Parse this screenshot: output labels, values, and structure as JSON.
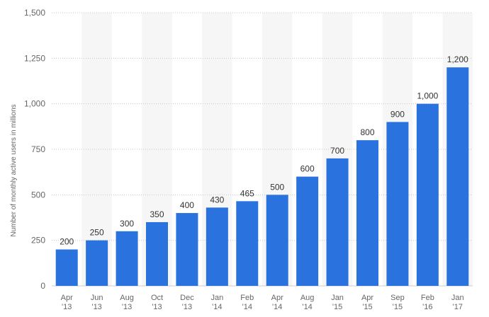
{
  "chart_data": {
    "type": "bar",
    "title": "",
    "xlabel": "",
    "ylabel": "Number of monthly active users in millions",
    "ylim": [
      0,
      1500
    ],
    "yticks": [
      0,
      250,
      500,
      750,
      1000,
      1250,
      1500
    ],
    "ytick_labels": [
      "0",
      "250",
      "500",
      "750",
      "1,000",
      "1,250",
      "1,500"
    ],
    "categories": [
      [
        "Apr",
        "'13"
      ],
      [
        "Jun",
        "'13"
      ],
      [
        "Aug",
        "'13"
      ],
      [
        "Oct",
        "'13"
      ],
      [
        "Dec",
        "'13"
      ],
      [
        "Jan",
        "'14"
      ],
      [
        "Feb",
        "'14"
      ],
      [
        "Apr",
        "'14"
      ],
      [
        "Aug",
        "'14"
      ],
      [
        "Jan",
        "'15"
      ],
      [
        "Apr",
        "'15"
      ],
      [
        "Sep",
        "'15"
      ],
      [
        "Feb",
        "'16"
      ],
      [
        "Jan",
        "'17"
      ]
    ],
    "values": [
      200,
      250,
      300,
      350,
      400,
      430,
      465,
      500,
      600,
      700,
      800,
      900,
      1000,
      1200
    ],
    "value_labels": [
      "200",
      "250",
      "300",
      "350",
      "400",
      "430",
      "465",
      "500",
      "600",
      "700",
      "800",
      "900",
      "1,000",
      "1,200"
    ],
    "bar_color": "#2a72de",
    "band_color": "#f6f6f6",
    "grid": true
  }
}
